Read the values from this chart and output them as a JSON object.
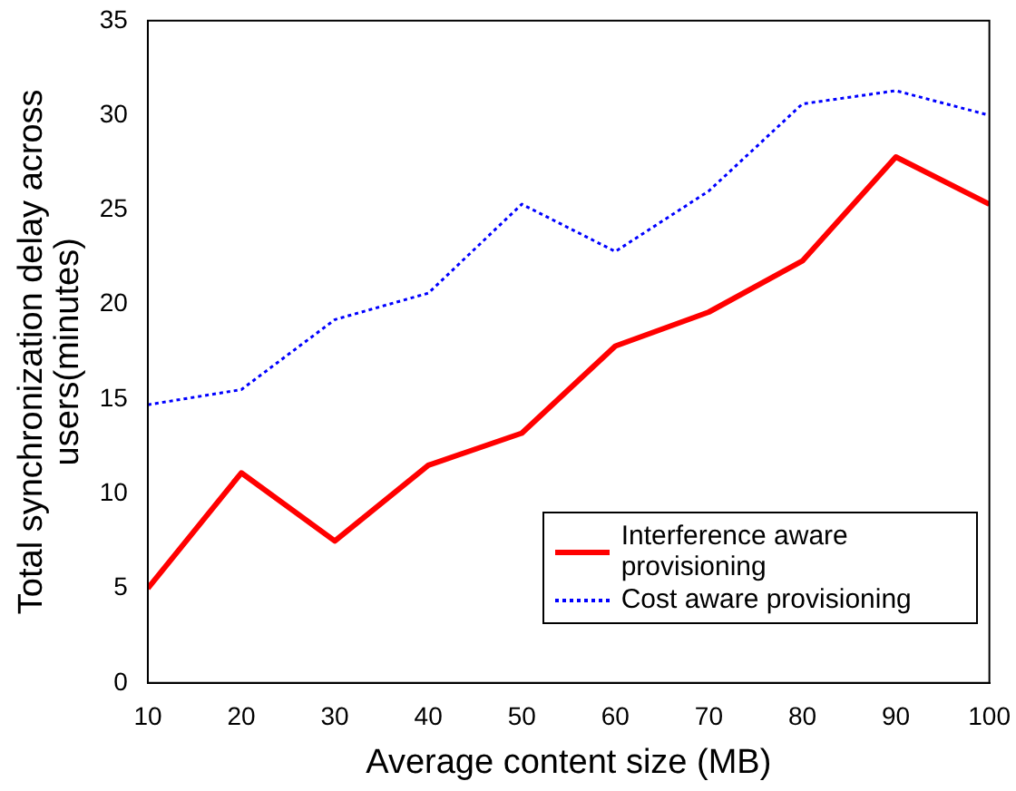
{
  "chart_data": {
    "type": "line",
    "xlabel": "Average content size (MB)",
    "ylabel": "Total synchronization delay across users(minutes)",
    "x": [
      10,
      20,
      30,
      40,
      50,
      60,
      70,
      80,
      90,
      100
    ],
    "series": [
      {
        "name": "Interference aware provisioning",
        "color": "#ff0000",
        "line_style": "solid",
        "values": [
          5,
          11.1,
          7.5,
          11.5,
          13.2,
          17.8,
          19.6,
          22.3,
          27.8,
          25.3
        ]
      },
      {
        "name": "Cost aware provisioning",
        "color": "#0000ff",
        "line_style": "dotted",
        "values": [
          14.7,
          15.5,
          19.2,
          20.6,
          25.3,
          22.8,
          26,
          30.6,
          31.3,
          30
        ]
      }
    ],
    "xlim": [
      10,
      100
    ],
    "xticks": [
      10,
      20,
      30,
      40,
      50,
      60,
      70,
      80,
      90,
      100
    ],
    "ylim": [
      0,
      35
    ],
    "yticks": [
      0,
      5,
      10,
      15,
      20,
      25,
      30,
      35
    ],
    "grid": false,
    "legend": "bottom right",
    "marker": "none"
  }
}
